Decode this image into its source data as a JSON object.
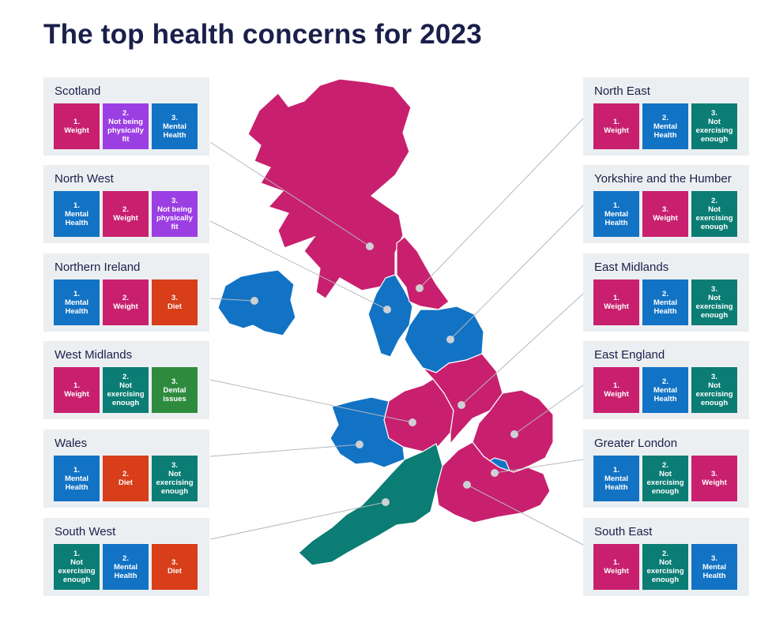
{
  "title": "The top health concerns for 2023",
  "colors": {
    "weight": "#c8206e",
    "mental_health": "#1273c5",
    "not_physically_fit": "#9b3fe3",
    "not_exercising": "#0b7d74",
    "diet": "#d73e19",
    "dental_issues": "#2e8b3e",
    "card_bg": "#eceff1",
    "title": "#1a1f4b"
  },
  "regions": [
    {
      "id": "scotland",
      "name": "Scotland",
      "map_color": "weight",
      "concerns": [
        {
          "rank": "1.",
          "label": "Weight",
          "color": "weight"
        },
        {
          "rank": "2.",
          "label": "Not being physically fit",
          "color": "not_physically_fit"
        },
        {
          "rank": "3.",
          "label": "Mental Health",
          "color": "mental_health"
        }
      ]
    },
    {
      "id": "north-west",
      "name": "North West",
      "map_color": "mental_health",
      "concerns": [
        {
          "rank": "1.",
          "label": "Mental Health",
          "color": "mental_health"
        },
        {
          "rank": "2.",
          "label": "Weight",
          "color": "weight"
        },
        {
          "rank": "3.",
          "label": "Not being physically fit",
          "color": "not_physically_fit"
        }
      ]
    },
    {
      "id": "northern-ireland",
      "name": "Northern Ireland",
      "map_color": "mental_health",
      "concerns": [
        {
          "rank": "1.",
          "label": "Mental Health",
          "color": "mental_health"
        },
        {
          "rank": "2.",
          "label": "Weight",
          "color": "weight"
        },
        {
          "rank": "3.",
          "label": "Diet",
          "color": "diet"
        }
      ]
    },
    {
      "id": "west-midlands",
      "name": "West Midlands",
      "map_color": "weight",
      "concerns": [
        {
          "rank": "1.",
          "label": "Weight",
          "color": "weight"
        },
        {
          "rank": "2.",
          "label": "Not exercising enough",
          "color": "not_exercising"
        },
        {
          "rank": "3.",
          "label": "Dental issues",
          "color": "dental_issues"
        }
      ]
    },
    {
      "id": "wales",
      "name": "Wales",
      "map_color": "mental_health",
      "concerns": [
        {
          "rank": "1.",
          "label": "Mental Health",
          "color": "mental_health"
        },
        {
          "rank": "2.",
          "label": "Diet",
          "color": "diet"
        },
        {
          "rank": "3.",
          "label": "Not exercising enough",
          "color": "not_exercising"
        }
      ]
    },
    {
      "id": "south-west",
      "name": "South West",
      "map_color": "not_exercising",
      "concerns": [
        {
          "rank": "1.",
          "label": "Not exercising enough",
          "color": "not_exercising"
        },
        {
          "rank": "2.",
          "label": "Mental Health",
          "color": "mental_health"
        },
        {
          "rank": "3.",
          "label": "Diet",
          "color": "diet"
        }
      ]
    },
    {
      "id": "north-east",
      "name": "North East",
      "map_color": "weight",
      "concerns": [
        {
          "rank": "1.",
          "label": "Weight",
          "color": "weight"
        },
        {
          "rank": "2.",
          "label": "Mental Health",
          "color": "mental_health"
        },
        {
          "rank": "3.",
          "label": "Not exercising enough",
          "color": "not_exercising"
        }
      ]
    },
    {
      "id": "yorkshire",
      "name": "Yorkshire and the Humber",
      "map_color": "mental_health",
      "concerns": [
        {
          "rank": "1.",
          "label": "Mental Health",
          "color": "mental_health"
        },
        {
          "rank": "3.",
          "label": "Weight",
          "color": "weight"
        },
        {
          "rank": "2.",
          "label": "Not exercising enough",
          "color": "not_exercising"
        }
      ]
    },
    {
      "id": "east-midlands",
      "name": "East Midlands",
      "map_color": "weight",
      "concerns": [
        {
          "rank": "1.",
          "label": "Weight",
          "color": "weight"
        },
        {
          "rank": "2.",
          "label": "Mental Health",
          "color": "mental_health"
        },
        {
          "rank": "3.",
          "label": "Not exercising enough",
          "color": "not_exercising"
        }
      ]
    },
    {
      "id": "east-england",
      "name": "East England",
      "map_color": "weight",
      "concerns": [
        {
          "rank": "1.",
          "label": "Weight",
          "color": "weight"
        },
        {
          "rank": "2.",
          "label": "Mental Health",
          "color": "mental_health"
        },
        {
          "rank": "3.",
          "label": "Not exercising enough",
          "color": "not_exercising"
        }
      ]
    },
    {
      "id": "greater-london",
      "name": "Greater London",
      "map_color": "mental_health",
      "concerns": [
        {
          "rank": "1.",
          "label": "Mental Health",
          "color": "mental_health"
        },
        {
          "rank": "2.",
          "label": "Not exercising enough",
          "color": "not_exercising"
        },
        {
          "rank": "3.",
          "label": "Weight",
          "color": "weight"
        }
      ]
    },
    {
      "id": "south-east",
      "name": "South East",
      "map_color": "weight",
      "concerns": [
        {
          "rank": "1.",
          "label": "Weight",
          "color": "weight"
        },
        {
          "rank": "2.",
          "label": "Not exercising enough",
          "color": "not_exercising"
        },
        {
          "rank": "3.",
          "label": "Mental Health",
          "color": "mental_health"
        }
      ]
    }
  ]
}
